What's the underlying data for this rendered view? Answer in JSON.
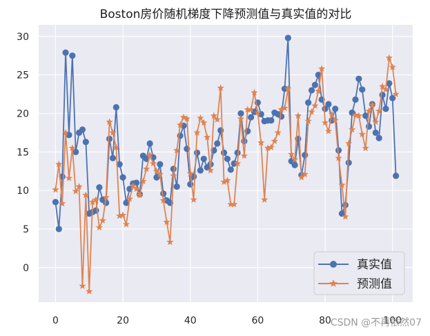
{
  "chart_data": {
    "type": "line",
    "title": "Boston房价随机梯度下降预测值与真实值的对比",
    "xlabel": "",
    "ylabel": "",
    "xlim": [
      -5,
      106
    ],
    "ylim": [
      -4.5,
      31.5
    ],
    "xticks": [
      0,
      20,
      40,
      60,
      80,
      100
    ],
    "yticks": [
      0,
      5,
      10,
      15,
      20,
      25,
      30
    ],
    "grid": true,
    "legend_position": "bottom-right",
    "series": [
      {
        "name": "真实值",
        "color": "#4c72b0",
        "marker": "circle",
        "x": [
          0,
          1,
          2,
          3,
          4,
          5,
          6,
          7,
          8,
          9,
          10,
          11,
          12,
          13,
          14,
          15,
          16,
          17,
          18,
          19,
          20,
          21,
          22,
          23,
          24,
          25,
          26,
          27,
          28,
          29,
          30,
          31,
          32,
          33,
          34,
          35,
          36,
          37,
          38,
          39,
          40,
          41,
          42,
          43,
          44,
          45,
          46,
          47,
          48,
          49,
          50,
          51,
          52,
          53,
          54,
          55,
          56,
          57,
          58,
          59,
          60,
          61,
          62,
          63,
          64,
          65,
          66,
          67,
          68,
          69,
          70,
          71,
          72,
          73,
          74,
          75,
          76,
          77,
          78,
          79,
          80,
          81,
          82,
          83,
          84,
          85,
          86,
          87,
          88,
          89,
          90,
          91,
          92,
          93,
          94,
          95,
          96,
          97,
          98,
          99,
          100,
          101
        ],
        "values": [
          8.5,
          5.0,
          11.8,
          27.9,
          17.2,
          27.5,
          15.0,
          17.5,
          17.9,
          16.3,
          7.0,
          7.2,
          7.4,
          10.4,
          8.8,
          8.4,
          16.7,
          14.2,
          20.8,
          13.4,
          11.7,
          8.4,
          10.2,
          10.9,
          11.0,
          9.5,
          14.5,
          14.1,
          16.1,
          14.3,
          11.7,
          13.4,
          9.6,
          8.7,
          8.4,
          12.8,
          10.5,
          17.1,
          18.4,
          15.4,
          10.8,
          11.8,
          14.9,
          12.6,
          14.1,
          13.0,
          13.4,
          15.2,
          16.1,
          17.8,
          14.9,
          14.1,
          12.7,
          13.5,
          14.9,
          20.0,
          16.4,
          17.7,
          19.5,
          20.2,
          21.4,
          19.9,
          19.0,
          19.1,
          19.1,
          20.1,
          19.9,
          19.6,
          23.2,
          29.8,
          13.8,
          13.3,
          16.7,
          12.0,
          14.6,
          21.4,
          23.0,
          23.7,
          25.0,
          21.8,
          20.6,
          21.2,
          19.1,
          20.6,
          15.2,
          7.0,
          8.1,
          13.6,
          20.1,
          21.8,
          24.5,
          23.1,
          19.7,
          18.3,
          21.2,
          17.5,
          16.8,
          22.4,
          20.6,
          23.9,
          22.0,
          11.9
        ]
      },
      {
        "name": "预测值",
        "color": "#dd8452",
        "marker": "star",
        "x": [
          0,
          1,
          2,
          3,
          4,
          5,
          6,
          7,
          8,
          9,
          10,
          11,
          12,
          13,
          14,
          15,
          16,
          17,
          18,
          19,
          20,
          21,
          22,
          23,
          24,
          25,
          26,
          27,
          28,
          29,
          30,
          31,
          32,
          33,
          34,
          35,
          36,
          37,
          38,
          39,
          40,
          41,
          42,
          43,
          44,
          45,
          46,
          47,
          48,
          49,
          50,
          51,
          52,
          53,
          54,
          55,
          56,
          57,
          58,
          59,
          60,
          61,
          62,
          63,
          64,
          65,
          66,
          67,
          68,
          69,
          70,
          71,
          72,
          73,
          74,
          75,
          76,
          77,
          78,
          79,
          80,
          81,
          82,
          83,
          84,
          85,
          86,
          87,
          88,
          89,
          90,
          91,
          92,
          93,
          94,
          95,
          96,
          97,
          98,
          99,
          100,
          101
        ],
        "values": [
          10.1,
          13.4,
          8.3,
          17.5,
          11.6,
          15.5,
          9.9,
          10.5,
          -2.4,
          9.4,
          -3.1,
          8.5,
          8.8,
          5.2,
          6.1,
          9.1,
          18.9,
          17.5,
          15.6,
          6.7,
          6.8,
          5.6,
          8.9,
          10.6,
          10.2,
          9.4,
          11.2,
          12.8,
          14.6,
          13.5,
          12.5,
          12.1,
          8.7,
          5.9,
          3.3,
          11.9,
          15.2,
          18.5,
          19.5,
          19.3,
          12.2,
          8.8,
          17.5,
          19.4,
          18.8,
          16.9,
          12.6,
          19.7,
          19.2,
          23.3,
          11.1,
          11.3,
          8.2,
          8.2,
          13.5,
          19.3,
          14.5,
          20.5,
          20.5,
          22.7,
          20.1,
          16.2,
          8.8,
          15.5,
          15.6,
          16.4,
          17.5,
          20.5,
          20.7,
          23.2,
          14.7,
          14.0,
          19.7,
          11.7,
          12.1,
          19.0,
          20.2,
          21.0,
          22.9,
          25.8,
          18.8,
          17.7,
          19.9,
          19.1,
          14.2,
          10.7,
          6.6,
          16.1,
          17.9,
          19.8,
          19.7,
          17.3,
          15.5,
          20.3,
          21.1,
          18.9,
          20.3,
          23.5,
          23.1,
          27.2,
          26.0,
          22.5
        ]
      }
    ]
  },
  "watermark": "CSDN @不再依然07"
}
